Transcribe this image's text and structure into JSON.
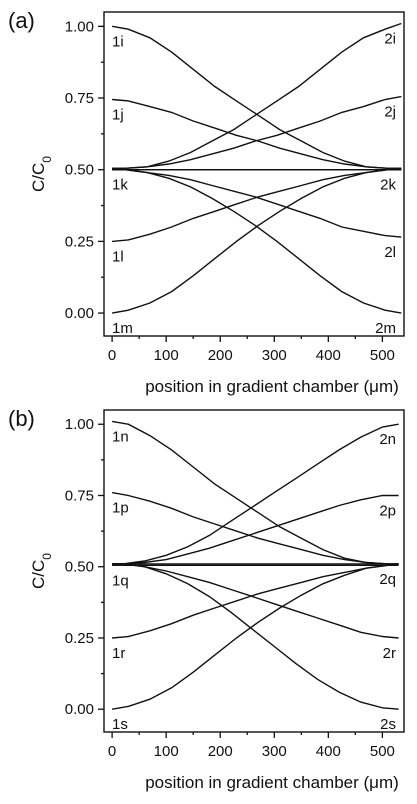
{
  "chart_data": [
    {
      "type": "line",
      "panel_label": "(a)",
      "xlabel": "position in gradient chamber (μm)",
      "ylabel": "C/C0",
      "xlim": [
        -15,
        540
      ],
      "ylim": [
        -0.08,
        1.05
      ],
      "x_ticks": [
        0,
        100,
        200,
        300,
        400,
        500
      ],
      "y_ticks": [
        "0.00",
        "0.25",
        "0.50",
        "0.75",
        "1.00"
      ],
      "series": [
        {
          "name": "1i",
          "label_pos": "left",
          "x": [
            0,
            30,
            70,
            110,
            150,
            190,
            230,
            270,
            310,
            350,
            390,
            430,
            470,
            510,
            535
          ],
          "y": [
            1.0,
            0.99,
            0.96,
            0.91,
            0.85,
            0.79,
            0.74,
            0.69,
            0.64,
            0.6,
            0.56,
            0.53,
            0.51,
            0.505,
            0.505
          ]
        },
        {
          "name": "1j",
          "label_pos": "left",
          "x": [
            0,
            30,
            70,
            110,
            150,
            190,
            230,
            270,
            310,
            350,
            390,
            430,
            470,
            510,
            535
          ],
          "y": [
            0.745,
            0.74,
            0.72,
            0.7,
            0.67,
            0.645,
            0.62,
            0.6,
            0.575,
            0.555,
            0.535,
            0.52,
            0.51,
            0.505,
            0.505
          ]
        },
        {
          "name": "1k",
          "label_pos": "left",
          "x": [
            0,
            535
          ],
          "y": [
            0.5,
            0.5
          ]
        },
        {
          "name": "1l",
          "label_pos": "left",
          "x": [
            0,
            30,
            70,
            110,
            150,
            190,
            230,
            270,
            310,
            350,
            390,
            430,
            470,
            510,
            535
          ],
          "y": [
            0.25,
            0.255,
            0.275,
            0.3,
            0.33,
            0.355,
            0.38,
            0.405,
            0.425,
            0.445,
            0.465,
            0.48,
            0.49,
            0.5,
            0.5
          ]
        },
        {
          "name": "1m",
          "label_pos": "left",
          "x": [
            0,
            30,
            70,
            110,
            150,
            190,
            230,
            270,
            310,
            350,
            390,
            430,
            470,
            510,
            535
          ],
          "y": [
            0.0,
            0.01,
            0.035,
            0.075,
            0.13,
            0.19,
            0.25,
            0.305,
            0.355,
            0.4,
            0.44,
            0.47,
            0.49,
            0.5,
            0.5
          ]
        },
        {
          "name": "2i",
          "label_pos": "right",
          "x": [
            0,
            25,
            65,
            105,
            145,
            185,
            225,
            265,
            305,
            345,
            385,
            425,
            465,
            505,
            535
          ],
          "y": [
            0.505,
            0.505,
            0.51,
            0.53,
            0.56,
            0.6,
            0.64,
            0.69,
            0.74,
            0.79,
            0.85,
            0.91,
            0.96,
            0.99,
            1.01
          ]
        },
        {
          "name": "2j",
          "label_pos": "right",
          "x": [
            0,
            25,
            65,
            105,
            145,
            185,
            225,
            265,
            305,
            345,
            385,
            425,
            465,
            505,
            535
          ],
          "y": [
            0.505,
            0.505,
            0.51,
            0.52,
            0.535,
            0.555,
            0.575,
            0.6,
            0.62,
            0.645,
            0.67,
            0.7,
            0.72,
            0.745,
            0.755
          ]
        },
        {
          "name": "2k",
          "label_pos": "right",
          "x": [
            0,
            535
          ],
          "y": [
            0.5,
            0.5
          ]
        },
        {
          "name": "2l",
          "label_pos": "right",
          "x": [
            0,
            25,
            65,
            105,
            145,
            185,
            225,
            265,
            305,
            345,
            385,
            425,
            465,
            505,
            535
          ],
          "y": [
            0.5,
            0.5,
            0.49,
            0.48,
            0.465,
            0.445,
            0.425,
            0.405,
            0.38,
            0.355,
            0.33,
            0.3,
            0.285,
            0.27,
            0.265
          ]
        },
        {
          "name": "2m",
          "label_pos": "right",
          "x": [
            0,
            25,
            65,
            105,
            145,
            185,
            225,
            265,
            305,
            345,
            385,
            425,
            465,
            505,
            535
          ],
          "y": [
            0.5,
            0.5,
            0.49,
            0.47,
            0.44,
            0.4,
            0.355,
            0.305,
            0.25,
            0.19,
            0.13,
            0.075,
            0.035,
            0.01,
            0.0
          ]
        }
      ]
    },
    {
      "type": "line",
      "panel_label": "(b)",
      "xlabel": "position in gradient chamber (μm)",
      "ylabel": "C/C0",
      "xlim": [
        -15,
        540
      ],
      "ylim": [
        -0.08,
        1.05
      ],
      "x_ticks": [
        0,
        100,
        200,
        300,
        400,
        500
      ],
      "y_ticks": [
        "0.00",
        "0.25",
        "0.50",
        "0.75",
        "1.00"
      ],
      "series": [
        {
          "name": "1n",
          "label_pos": "left",
          "x": [
            0,
            30,
            70,
            110,
            150,
            190,
            230,
            270,
            310,
            350,
            390,
            430,
            470,
            510,
            530
          ],
          "y": [
            1.01,
            1.0,
            0.96,
            0.91,
            0.85,
            0.79,
            0.74,
            0.69,
            0.64,
            0.6,
            0.56,
            0.53,
            0.515,
            0.51,
            0.51
          ]
        },
        {
          "name": "1p",
          "label_pos": "left",
          "x": [
            0,
            30,
            70,
            110,
            150,
            190,
            230,
            270,
            310,
            350,
            390,
            430,
            470,
            510,
            530
          ],
          "y": [
            0.76,
            0.75,
            0.73,
            0.705,
            0.675,
            0.65,
            0.625,
            0.6,
            0.58,
            0.56,
            0.54,
            0.525,
            0.515,
            0.51,
            0.51
          ]
        },
        {
          "name": "1q",
          "label_pos": "left",
          "x": [
            0,
            530
          ],
          "y": [
            0.505,
            0.505
          ]
        },
        {
          "name": "1r",
          "label_pos": "left",
          "x": [
            0,
            30,
            70,
            110,
            150,
            190,
            230,
            270,
            310,
            350,
            390,
            430,
            470,
            510,
            530
          ],
          "y": [
            0.25,
            0.255,
            0.275,
            0.3,
            0.33,
            0.355,
            0.38,
            0.405,
            0.425,
            0.445,
            0.465,
            0.48,
            0.495,
            0.505,
            0.51
          ]
        },
        {
          "name": "1s",
          "label_pos": "left",
          "x": [
            0,
            30,
            70,
            110,
            150,
            190,
            230,
            270,
            310,
            350,
            390,
            430,
            470,
            510,
            530
          ],
          "y": [
            0.0,
            0.01,
            0.035,
            0.075,
            0.13,
            0.19,
            0.25,
            0.305,
            0.355,
            0.4,
            0.44,
            0.47,
            0.495,
            0.505,
            0.51
          ]
        },
        {
          "name": "2n",
          "label_pos": "right",
          "x": [
            0,
            20,
            60,
            100,
            140,
            180,
            220,
            260,
            300,
            340,
            380,
            420,
            460,
            500,
            530
          ],
          "y": [
            0.51,
            0.51,
            0.52,
            0.54,
            0.57,
            0.61,
            0.66,
            0.71,
            0.76,
            0.81,
            0.86,
            0.91,
            0.955,
            0.99,
            1.0
          ]
        },
        {
          "name": "2p",
          "label_pos": "right",
          "x": [
            0,
            20,
            60,
            100,
            140,
            180,
            220,
            260,
            300,
            340,
            380,
            420,
            460,
            500,
            530
          ],
          "y": [
            0.51,
            0.51,
            0.515,
            0.525,
            0.545,
            0.565,
            0.59,
            0.615,
            0.64,
            0.665,
            0.69,
            0.715,
            0.735,
            0.75,
            0.75
          ]
        },
        {
          "name": "2q",
          "label_pos": "right",
          "x": [
            0,
            530
          ],
          "y": [
            0.51,
            0.51
          ]
        },
        {
          "name": "2r",
          "label_pos": "right",
          "x": [
            0,
            20,
            60,
            100,
            140,
            180,
            220,
            260,
            300,
            340,
            380,
            420,
            460,
            500,
            530
          ],
          "y": [
            0.51,
            0.51,
            0.5,
            0.485,
            0.465,
            0.445,
            0.42,
            0.395,
            0.37,
            0.345,
            0.32,
            0.295,
            0.27,
            0.255,
            0.25
          ]
        },
        {
          "name": "2s",
          "label_pos": "right",
          "x": [
            0,
            20,
            60,
            100,
            140,
            180,
            220,
            260,
            300,
            340,
            380,
            420,
            460,
            500,
            530
          ],
          "y": [
            0.51,
            0.51,
            0.5,
            0.475,
            0.44,
            0.395,
            0.34,
            0.28,
            0.22,
            0.16,
            0.105,
            0.06,
            0.025,
            0.005,
            0.0
          ]
        }
      ]
    }
  ]
}
